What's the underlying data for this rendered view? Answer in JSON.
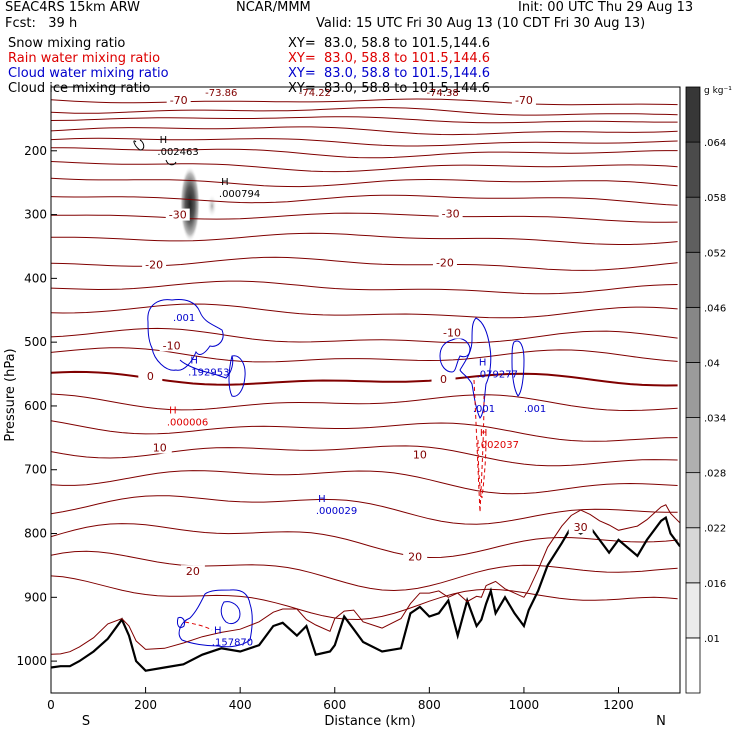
{
  "header": {
    "model": "SEAC4RS 15km ARW",
    "forecast": "Fcst:   39 h",
    "center": "NCAR/MMM",
    "init": "Init: 00 UTC Thu 29 Aug 13",
    "valid": "Valid: 15 UTC Fri 30 Aug 13 (10 CDT Fri 30 Aug 13)"
  },
  "fields": [
    {
      "name": "Snow mixing ratio",
      "xy": "XY=  83.0, 58.8 to 101.5,144.6",
      "color": "#000000"
    },
    {
      "name": "Rain water mixing ratio",
      "xy": "XY=  83.0, 58.8 to 101.5,144.6",
      "color": "#dd0000"
    },
    {
      "name": "Cloud water mixing ratio",
      "xy": "XY=  83.0, 58.8 to 101.5,144.6",
      "color": "#0000cc"
    },
    {
      "name": "Cloud ice mixing ratio",
      "xy": "XY=  83.0, 58.8 to 101.5,144.6",
      "color": "#000000"
    }
  ],
  "colors": {
    "temperature": "#800000",
    "rain": "#dd0000",
    "cloud_water": "#0000cc",
    "terrain": "#000000"
  },
  "chart_data": {
    "type": "cross-section",
    "xlabel": "Distance (km)",
    "ylabel": "Pressure (hPa)",
    "xlim": [
      0,
      1330
    ],
    "ylim": [
      1050,
      100
    ],
    "x_ticks": [
      0,
      200,
      400,
      600,
      800,
      1000,
      1200
    ],
    "y_ticks": [
      200,
      300,
      400,
      500,
      600,
      700,
      800,
      900,
      1000
    ],
    "end_labels": {
      "left": "S",
      "right": "N"
    },
    "colorbar": {
      "unit": "g kg⁻¹",
      "levels": [
        ".01",
        ".016",
        ".022",
        ".028",
        ".034",
        ".04",
        ".046",
        ".052",
        ".058",
        ".064"
      ]
    },
    "temperature_contours": [
      -70,
      -60,
      -50,
      -40,
      -30,
      -20,
      -10,
      0,
      10,
      20,
      30
    ],
    "contour_labels": [
      {
        "text": "-70",
        "x": 270,
        "p": 120
      },
      {
        "text": "-70",
        "x": 1000,
        "p": 120
      },
      {
        "text": "-30",
        "x": 268,
        "p": 300
      },
      {
        "text": "-30",
        "x": 845,
        "p": 298
      },
      {
        "text": "-20",
        "x": 218,
        "p": 378
      },
      {
        "text": "-20",
        "x": 833,
        "p": 375
      },
      {
        "text": "-10",
        "x": 255,
        "p": 505
      },
      {
        "text": "-10",
        "x": 848,
        "p": 485
      },
      {
        "text": "0",
        "x": 210,
        "p": 553
      },
      {
        "text": "0",
        "x": 830,
        "p": 558
      },
      {
        "text": "10",
        "x": 230,
        "p": 665
      },
      {
        "text": "10",
        "x": 780,
        "p": 676
      },
      {
        "text": "20",
        "x": 300,
        "p": 859
      },
      {
        "text": "20",
        "x": 770,
        "p": 836
      },
      {
        "text": "30",
        "x": 1120,
        "p": 790
      }
    ],
    "extrema": [
      {
        "label": "-73.86",
        "x": 360,
        "p": 108,
        "color": "#800000"
      },
      {
        "label": "-74.22",
        "x": 558,
        "p": 108,
        "color": "#800000"
      },
      {
        "label": "-74.38",
        "x": 828,
        "p": 108,
        "color": "#800000"
      },
      {
        "label": "H",
        "value": ".002463",
        "x": 225,
        "p": 194,
        "color": "#000000"
      },
      {
        "label": "H",
        "value": ".000794",
        "x": 355,
        "p": 260,
        "color": "#000000"
      },
      {
        "label": "H",
        "value": ".001",
        "x": 258,
        "p": 454,
        "color": "#0000cc",
        "nomark": true
      },
      {
        "label": "H",
        "value": ".192953",
        "x": 290,
        "p": 540,
        "color": "#0000cc"
      },
      {
        "label": "H",
        "value": ".079277",
        "x": 900,
        "p": 543,
        "color": "#0000cc"
      },
      {
        "label": "H",
        "value": ".001",
        "x": 892,
        "p": 597,
        "color": "#0000cc",
        "nomark": true
      },
      {
        "label": "H",
        "value": ".001",
        "x": 1000,
        "p": 597,
        "color": "#0000cc",
        "nomark": true
      },
      {
        "label": "H",
        "value": ".000006",
        "x": 245,
        "p": 618,
        "color": "#dd0000"
      },
      {
        "label": "H",
        "value": ".002037",
        "x": 902,
        "p": 653,
        "color": "#dd0000"
      },
      {
        "label": "H",
        "value": ".000029",
        "x": 560,
        "p": 757,
        "color": "#0000cc"
      },
      {
        "label": "H",
        "value": ".157870",
        "x": 340,
        "p": 963,
        "color": "#0000cc"
      }
    ]
  }
}
